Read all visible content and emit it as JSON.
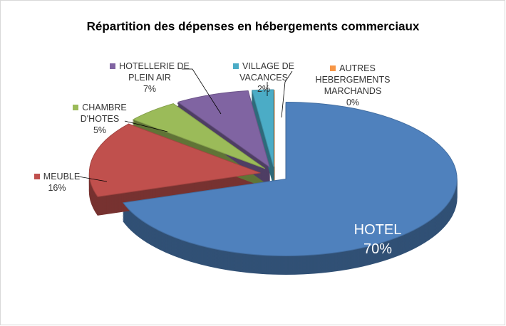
{
  "chart_data": {
    "type": "pie",
    "title": "Répartition des dépenses en hébergements commerciaux",
    "categories": [
      "HOTEL",
      "MEUBLE",
      "CHAMBRE D'HOTES",
      "HOTELLERIE DE PLEIN AIR",
      "VILLAGE DE VACANCES",
      "AUTRES HEBERGEMENTS MARCHANDS"
    ],
    "values": [
      70,
      16,
      5,
      7,
      2,
      0
    ],
    "value_labels": [
      "70%",
      "16%",
      "5%",
      "7%",
      "2%",
      "0%"
    ],
    "colors": [
      "#4f81bd",
      "#c0504d",
      "#9bbb59",
      "#8064a2",
      "#4bacc6",
      "#f79646"
    ]
  }
}
